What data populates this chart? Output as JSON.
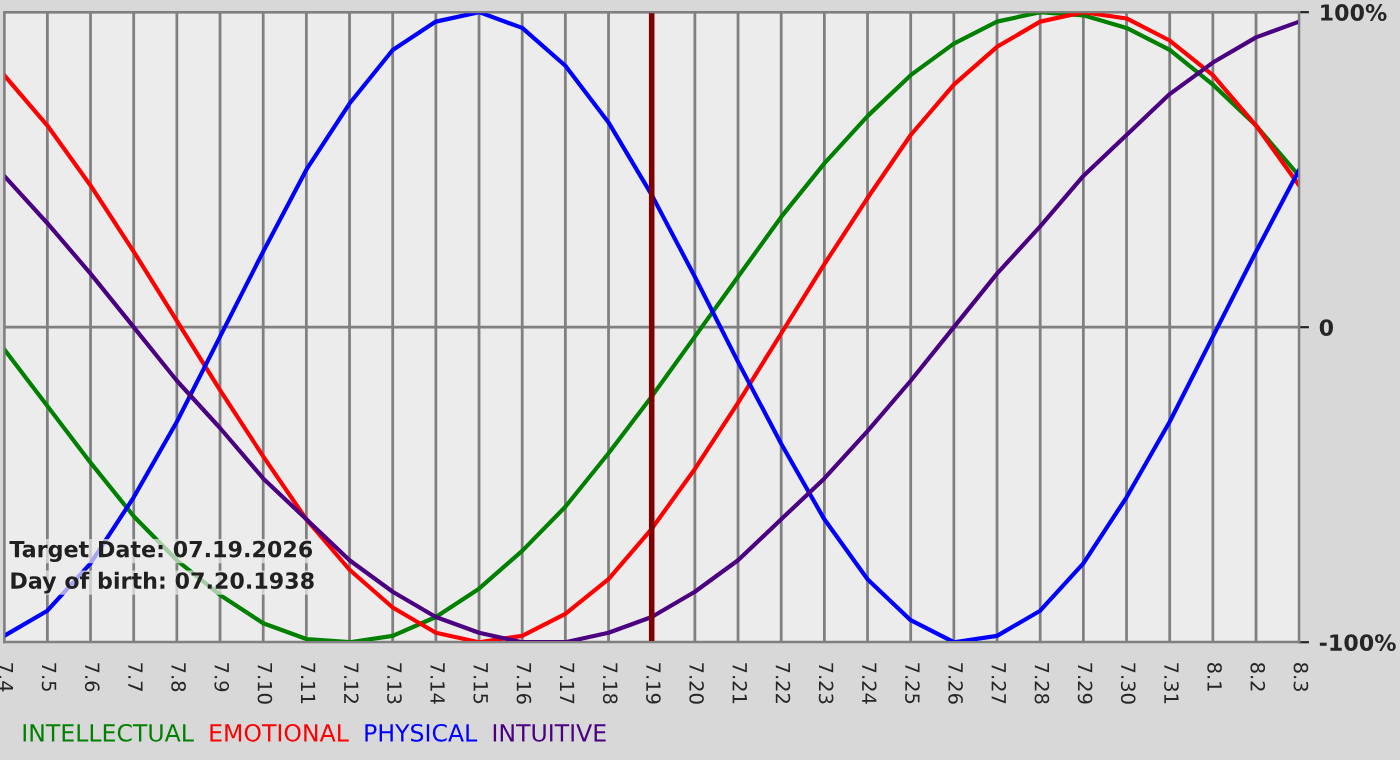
{
  "chart_data": {
    "type": "line",
    "categories": [
      "7.4",
      "7.5",
      "7.6",
      "7.7",
      "7.8",
      "7.9",
      "7.10",
      "7.11",
      "7.12",
      "7.13",
      "7.14",
      "7.15",
      "7.16",
      "7.17",
      "7.18",
      "7.19",
      "7.20",
      "7.21",
      "7.22",
      "7.23",
      "7.24",
      "7.25",
      "7.26",
      "7.27",
      "7.28",
      "7.29",
      "7.30",
      "7.31",
      "8.1",
      "8.2",
      "8.3"
    ],
    "series": [
      {
        "name": "INTELLECTUAL",
        "color": "#008000",
        "values": [
          -7,
          -25,
          -43,
          -60,
          -74,
          -85,
          -94,
          -99,
          -100,
          -98,
          -92,
          -83,
          -71,
          -57,
          -40,
          -22,
          -3,
          16,
          35,
          52,
          67,
          80,
          90,
          97,
          100,
          99,
          95,
          88,
          77,
          64,
          48
        ]
      },
      {
        "name": "EMOTIONAL",
        "color": "#ff0000",
        "values": [
          80,
          64,
          45,
          24,
          2,
          -20,
          -41,
          -61,
          -77,
          -89,
          -97,
          -100,
          -98,
          -91,
          -80,
          -64,
          -45,
          -24,
          -2,
          20,
          41,
          61,
          77,
          89,
          97,
          100,
          98,
          91,
          80,
          64,
          45
        ]
      },
      {
        "name": "PHYSICAL",
        "color": "#0000ff",
        "values": [
          -98,
          -90,
          -75,
          -54,
          -30,
          -3,
          24,
          50,
          71,
          88,
          97,
          100,
          95,
          83,
          65,
          42,
          16,
          -11,
          -37,
          -61,
          -80,
          -93,
          -100,
          -98,
          -90,
          -75,
          -54,
          -30,
          -3,
          24,
          50
        ]
      },
      {
        "name": "INTUITIVE",
        "color": "#4b0082",
        "values": [
          48,
          33,
          17,
          0,
          -17,
          -32,
          -48,
          -61,
          -74,
          -84,
          -92,
          -97,
          -100,
          -100,
          -97,
          -92,
          -84,
          -74,
          -61,
          -48,
          -33,
          -17,
          0,
          17,
          32,
          48,
          61,
          74,
          84,
          92,
          97
        ]
      }
    ],
    "ylim": [
      -100,
      100
    ],
    "yticks": [
      {
        "value": -100,
        "label": "-100%"
      },
      0,
      {
        "value": 100,
        "label": "100%"
      }
    ],
    "ref_lines": [
      {
        "axis": "x",
        "value": "7.19",
        "color": "#800000"
      }
    ],
    "annotations": [
      "Target Date: 07.19.2026",
      "Day of birth: 07.20.1938"
    ],
    "grid": true,
    "legend": "bottom left"
  }
}
